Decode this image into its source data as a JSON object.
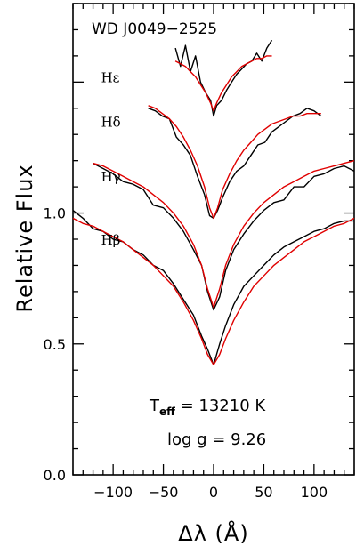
{
  "chart_data": {
    "type": "line",
    "title": "WD J0049−2525",
    "xlabel": "Δλ (Å)",
    "ylabel": "Relative Flux",
    "xlim": [
      -140,
      140
    ],
    "ylim": [
      0.0,
      1.8
    ],
    "xticks": [
      -100,
      -50,
      0,
      50,
      100
    ],
    "xtick_labels": [
      "−100",
      "−50",
      "0",
      "50",
      "100"
    ],
    "yticks": [
      0.0,
      0.5,
      1.0
    ],
    "ytick_labels": [
      "0.0",
      "0.5",
      "1.0"
    ],
    "grid": false,
    "teff_label": "T",
    "teff_sub": "eff",
    "teff_value": " = 13210 K",
    "logg_label": "log g = 9.26",
    "series": [
      {
        "name": "Hε",
        "label_pos": [
          -112,
          1.5
        ],
        "color_obs": "#000000",
        "color_model": "#e00000",
        "x": [
          -38,
          -33,
          -28,
          -23,
          -18,
          -13,
          -8,
          -3,
          0,
          3,
          8,
          13,
          18,
          23,
          28,
          33,
          38,
          43,
          48,
          53,
          58
        ],
        "observed": [
          1.63,
          1.56,
          1.64,
          1.54,
          1.6,
          1.5,
          1.46,
          1.43,
          1.37,
          1.41,
          1.43,
          1.47,
          1.5,
          1.53,
          1.55,
          1.57,
          1.58,
          1.61,
          1.58,
          1.63,
          1.66
        ],
        "model": [
          1.58,
          1.57,
          1.56,
          1.54,
          1.52,
          1.49,
          1.46,
          1.42,
          1.39,
          1.42,
          1.46,
          1.49,
          1.52,
          1.54,
          1.56,
          1.57,
          1.58,
          1.59,
          1.59,
          1.6,
          1.6
        ]
      },
      {
        "name": "Hδ",
        "label_pos": [
          -112,
          1.33
        ],
        "color_obs": "#000000",
        "color_model": "#e00000",
        "x": [
          -65,
          -58,
          -51,
          -44,
          -37,
          -30,
          -23,
          -16,
          -9,
          -4,
          0,
          4,
          9,
          16,
          23,
          30,
          37,
          44,
          51,
          58,
          65,
          72,
          79,
          86,
          93,
          100,
          107
        ],
        "observed": [
          1.4,
          1.39,
          1.37,
          1.36,
          1.29,
          1.26,
          1.22,
          1.14,
          1.07,
          0.99,
          0.98,
          1.01,
          1.06,
          1.12,
          1.16,
          1.18,
          1.22,
          1.26,
          1.27,
          1.31,
          1.33,
          1.35,
          1.37,
          1.38,
          1.4,
          1.39,
          1.37
        ],
        "model": [
          1.41,
          1.4,
          1.38,
          1.36,
          1.33,
          1.29,
          1.24,
          1.18,
          1.1,
          1.02,
          0.98,
          1.02,
          1.09,
          1.15,
          1.2,
          1.24,
          1.27,
          1.3,
          1.32,
          1.34,
          1.35,
          1.36,
          1.37,
          1.37,
          1.38,
          1.38,
          1.38
        ]
      },
      {
        "name": "Hγ",
        "label_pos": [
          -112,
          1.12
        ],
        "color_obs": "#000000",
        "color_model": "#e00000",
        "x": [
          -120,
          -110,
          -100,
          -90,
          -80,
          -70,
          -60,
          -50,
          -40,
          -30,
          -20,
          -12,
          -6,
          0,
          6,
          12,
          20,
          30,
          40,
          50,
          60,
          70,
          80,
          90,
          100,
          110,
          120,
          130,
          140
        ],
        "observed": [
          1.19,
          1.17,
          1.15,
          1.12,
          1.11,
          1.09,
          1.03,
          1.02,
          0.98,
          0.93,
          0.86,
          0.8,
          0.7,
          0.63,
          0.68,
          0.78,
          0.86,
          0.92,
          0.97,
          1.01,
          1.04,
          1.05,
          1.1,
          1.1,
          1.14,
          1.15,
          1.17,
          1.18,
          1.16
        ],
        "model": [
          1.19,
          1.18,
          1.16,
          1.14,
          1.12,
          1.1,
          1.07,
          1.04,
          1.0,
          0.95,
          0.88,
          0.8,
          0.71,
          0.64,
          0.71,
          0.8,
          0.88,
          0.95,
          1.0,
          1.04,
          1.07,
          1.1,
          1.12,
          1.14,
          1.16,
          1.17,
          1.18,
          1.19,
          1.2
        ]
      },
      {
        "name": "Hβ",
        "label_pos": [
          -112,
          0.88
        ],
        "color_obs": "#000000",
        "color_model": "#e00000",
        "x": [
          -140,
          -130,
          -120,
          -110,
          -100,
          -90,
          -80,
          -70,
          -60,
          -50,
          -40,
          -30,
          -20,
          -12,
          -6,
          0,
          6,
          12,
          20,
          30,
          40,
          50,
          60,
          70,
          80,
          90,
          100,
          110,
          120,
          130,
          140
        ],
        "observed": [
          1.01,
          0.98,
          0.94,
          0.93,
          0.9,
          0.89,
          0.86,
          0.84,
          0.8,
          0.78,
          0.73,
          0.67,
          0.61,
          0.53,
          0.48,
          0.42,
          0.5,
          0.57,
          0.65,
          0.72,
          0.76,
          0.8,
          0.84,
          0.87,
          0.89,
          0.91,
          0.93,
          0.94,
          0.96,
          0.97,
          0.97
        ],
        "model": [
          0.98,
          0.96,
          0.95,
          0.93,
          0.91,
          0.89,
          0.86,
          0.83,
          0.8,
          0.76,
          0.72,
          0.66,
          0.59,
          0.52,
          0.46,
          0.42,
          0.46,
          0.52,
          0.59,
          0.66,
          0.72,
          0.76,
          0.8,
          0.83,
          0.86,
          0.89,
          0.91,
          0.93,
          0.95,
          0.96,
          0.98
        ]
      }
    ]
  }
}
